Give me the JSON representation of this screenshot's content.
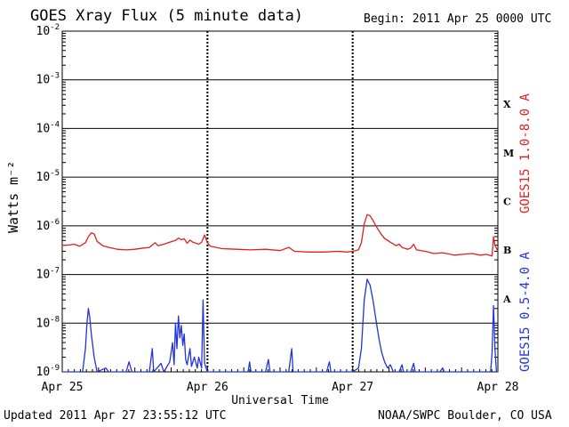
{
  "header": {
    "title": "GOES Xray Flux (5 minute data)",
    "begin": "Begin:  2011 Apr 25 0000 UTC"
  },
  "footer": {
    "updated": "Updated 2011 Apr 27 23:55:12 UTC",
    "credit": "NOAA/SWPC Boulder, CO USA"
  },
  "colors": {
    "long": "#e02020",
    "short": "#2233dd"
  },
  "chart_data": {
    "type": "line",
    "title": "GOES Xray Flux (5 minute data)",
    "ylabel": "Watts m⁻²",
    "xlabel": "Universal Time",
    "yscale": "log",
    "ylim": [
      1e-09,
      0.01
    ],
    "xlim": [
      0,
      3
    ],
    "yticks": [
      {
        "exp": "-9",
        "v": 1e-09
      },
      {
        "exp": "-8",
        "v": 1e-08
      },
      {
        "exp": "-7",
        "v": 1e-07
      },
      {
        "exp": "-6",
        "v": 1e-06
      },
      {
        "exp": "-5",
        "v": 1e-05
      },
      {
        "exp": "-4",
        "v": 0.0001
      },
      {
        "exp": "-3",
        "v": 0.001
      },
      {
        "exp": "-2",
        "v": 0.01
      }
    ],
    "xticks": [
      {
        "label": "Apr 25",
        "v": 0
      },
      {
        "label": "Apr 26",
        "v": 1
      },
      {
        "label": "Apr 27",
        "v": 2
      },
      {
        "label": "Apr 28",
        "v": 3
      }
    ],
    "flare_classes": [
      {
        "label": "A",
        "v": 3.16e-08
      },
      {
        "label": "B",
        "v": 3.16e-07
      },
      {
        "label": "C",
        "v": 3.16e-06
      },
      {
        "label": "M",
        "v": 3.16e-05
      },
      {
        "label": "X",
        "v": 0.000316
      }
    ],
    "grid": true,
    "series": [
      {
        "name": "GOES15 1.0-8.0 A",
        "color": "#e02020",
        "points": [
          [
            0.0,
            4e-07
          ],
          [
            0.04,
            4e-07
          ],
          [
            0.08,
            4.2e-07
          ],
          [
            0.12,
            3.8e-07
          ],
          [
            0.16,
            4.5e-07
          ],
          [
            0.18,
            6e-07
          ],
          [
            0.2,
            7.2e-07
          ],
          [
            0.22,
            6.8e-07
          ],
          [
            0.24,
            4.8e-07
          ],
          [
            0.28,
            3.9e-07
          ],
          [
            0.32,
            3.6e-07
          ],
          [
            0.38,
            3.3e-07
          ],
          [
            0.44,
            3.2e-07
          ],
          [
            0.5,
            3.3e-07
          ],
          [
            0.56,
            3.5e-07
          ],
          [
            0.6,
            3.6e-07
          ],
          [
            0.64,
            4.5e-07
          ],
          [
            0.66,
            3.9e-07
          ],
          [
            0.7,
            4.2e-07
          ],
          [
            0.74,
            4.6e-07
          ],
          [
            0.78,
            5e-07
          ],
          [
            0.8,
            5.6e-07
          ],
          [
            0.82,
            5.2e-07
          ],
          [
            0.84,
            5.4e-07
          ],
          [
            0.86,
            4.4e-07
          ],
          [
            0.88,
            5.1e-07
          ],
          [
            0.9,
            4.6e-07
          ],
          [
            0.94,
            4.2e-07
          ],
          [
            0.96,
            4.6e-07
          ],
          [
            0.98,
            6.5e-07
          ],
          [
            1.0,
            4.5e-07
          ],
          [
            1.02,
            3.8e-07
          ],
          [
            1.1,
            3.4e-07
          ],
          [
            1.2,
            3.3e-07
          ],
          [
            1.3,
            3.2e-07
          ],
          [
            1.4,
            3.3e-07
          ],
          [
            1.5,
            3.1e-07
          ],
          [
            1.56,
            3.6e-07
          ],
          [
            1.6,
            3e-07
          ],
          [
            1.7,
            2.9e-07
          ],
          [
            1.8,
            2.9e-07
          ],
          [
            1.9,
            3e-07
          ],
          [
            1.96,
            2.9e-07
          ],
          [
            2.0,
            3e-07
          ],
          [
            2.04,
            3.2e-07
          ],
          [
            2.06,
            4.5e-07
          ],
          [
            2.08,
            1.1e-06
          ],
          [
            2.1,
            1.7e-06
          ],
          [
            2.12,
            1.6e-06
          ],
          [
            2.14,
            1.3e-06
          ],
          [
            2.16,
            1e-06
          ],
          [
            2.18,
            8e-07
          ],
          [
            2.2,
            6.5e-07
          ],
          [
            2.22,
            5.5e-07
          ],
          [
            2.26,
            4.6e-07
          ],
          [
            2.3,
            3.9e-07
          ],
          [
            2.32,
            4.2e-07
          ],
          [
            2.34,
            3.6e-07
          ],
          [
            2.38,
            3.3e-07
          ],
          [
            2.4,
            3.5e-07
          ],
          [
            2.42,
            4.2e-07
          ],
          [
            2.44,
            3.2e-07
          ],
          [
            2.5,
            3e-07
          ],
          [
            2.56,
            2.7e-07
          ],
          [
            2.62,
            2.8e-07
          ],
          [
            2.7,
            2.5e-07
          ],
          [
            2.76,
            2.6e-07
          ],
          [
            2.82,
            2.7e-07
          ],
          [
            2.88,
            2.5e-07
          ],
          [
            2.92,
            2.6e-07
          ],
          [
            2.96,
            2.4e-07
          ],
          [
            2.97,
            6e-07
          ],
          [
            2.98,
            4e-07
          ],
          [
            3.0,
            3e-07
          ]
        ]
      },
      {
        "name": "GOES15 0.5-4.0 A",
        "color": "#2233dd",
        "points": [
          [
            0.0,
            1e-09
          ],
          [
            0.14,
            1e-09
          ],
          [
            0.16,
            3e-09
          ],
          [
            0.17,
            1e-08
          ],
          [
            0.18,
            2e-08
          ],
          [
            0.19,
            1.3e-08
          ],
          [
            0.2,
            6e-09
          ],
          [
            0.22,
            2e-09
          ],
          [
            0.24,
            1e-09
          ],
          [
            0.3,
            1.2e-09
          ],
          [
            0.32,
            1e-09
          ],
          [
            0.44,
            1e-09
          ],
          [
            0.46,
            1.6e-09
          ],
          [
            0.48,
            1e-09
          ],
          [
            0.6,
            1e-09
          ],
          [
            0.62,
            3e-09
          ],
          [
            0.63,
            1e-09
          ],
          [
            0.68,
            1.5e-09
          ],
          [
            0.7,
            1e-09
          ],
          [
            0.74,
            1.6e-09
          ],
          [
            0.76,
            4e-09
          ],
          [
            0.77,
            1.4e-09
          ],
          [
            0.78,
            1e-08
          ],
          [
            0.79,
            3e-09
          ],
          [
            0.8,
            1.4e-08
          ],
          [
            0.81,
            5e-09
          ],
          [
            0.82,
            9e-09
          ],
          [
            0.83,
            3.5e-09
          ],
          [
            0.84,
            6e-09
          ],
          [
            0.85,
            1.8e-09
          ],
          [
            0.86,
            1.4e-09
          ],
          [
            0.88,
            3e-09
          ],
          [
            0.89,
            1.3e-09
          ],
          [
            0.91,
            2e-09
          ],
          [
            0.93,
            1.2e-09
          ],
          [
            0.94,
            2e-09
          ],
          [
            0.96,
            1.2e-09
          ],
          [
            0.97,
            3e-08
          ],
          [
            0.98,
            1.5e-09
          ],
          [
            1.0,
            1e-09
          ],
          [
            1.28,
            1e-09
          ],
          [
            1.29,
            1.6e-09
          ],
          [
            1.3,
            1e-09
          ],
          [
            1.4,
            1e-09
          ],
          [
            1.42,
            1.8e-09
          ],
          [
            1.43,
            1e-09
          ],
          [
            1.56,
            1e-09
          ],
          [
            1.58,
            3e-09
          ],
          [
            1.59,
            1e-09
          ],
          [
            1.82,
            1e-09
          ],
          [
            1.84,
            1.6e-09
          ],
          [
            1.85,
            1e-09
          ],
          [
            1.96,
            1e-09
          ],
          [
            2.0,
            1e-09
          ],
          [
            2.04,
            1.2e-09
          ],
          [
            2.06,
            3e-09
          ],
          [
            2.08,
            3e-08
          ],
          [
            2.1,
            8e-08
          ],
          [
            2.12,
            6e-08
          ],
          [
            2.14,
            3e-08
          ],
          [
            2.16,
            1.2e-08
          ],
          [
            2.18,
            5e-09
          ],
          [
            2.2,
            2.5e-09
          ],
          [
            2.22,
            1.6e-09
          ],
          [
            2.24,
            1.2e-09
          ],
          [
            2.26,
            1.4e-09
          ],
          [
            2.28,
            1e-09
          ],
          [
            2.32,
            1e-09
          ],
          [
            2.34,
            1.4e-09
          ],
          [
            2.35,
            1e-09
          ],
          [
            2.4,
            1e-09
          ],
          [
            2.42,
            1.5e-09
          ],
          [
            2.43,
            1e-09
          ],
          [
            2.6,
            1e-09
          ],
          [
            2.62,
            1.2e-09
          ],
          [
            2.63,
            1e-09
          ],
          [
            2.95,
            1e-09
          ],
          [
            2.96,
            2.5e-09
          ],
          [
            2.97,
            2.3e-08
          ],
          [
            2.98,
            3e-09
          ],
          [
            2.99,
            1e-09
          ],
          [
            3.0,
            1e-09
          ]
        ]
      }
    ]
  }
}
